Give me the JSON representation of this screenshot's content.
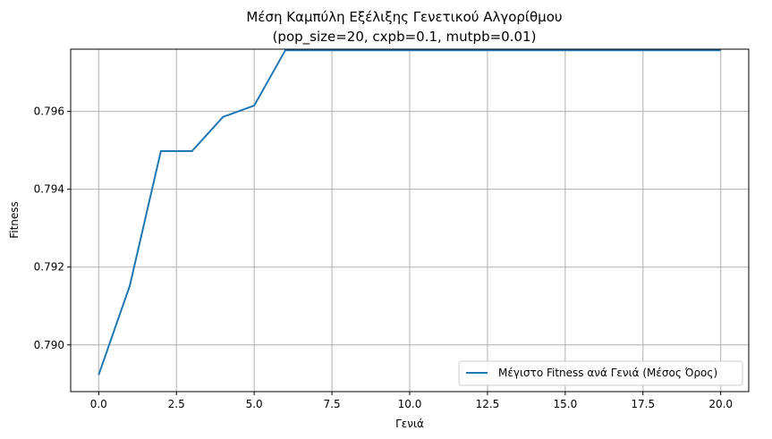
{
  "chart_data": {
    "type": "line",
    "title": "Μέση Καμπύλη Εξέλιξης Γενετικού Αλγορίθμου",
    "subtitle": "(pop_size=20, cxpb=0.1, mutpb=0.01)",
    "xlabel": "Γενιά",
    "ylabel": "Fitness",
    "xlim": [
      -0.9,
      20.9
    ],
    "ylim": [
      0.7888,
      0.7976
    ],
    "xticks": [
      0.0,
      2.5,
      5.0,
      7.5,
      10.0,
      12.5,
      15.0,
      17.5,
      20.0
    ],
    "xtick_labels": [
      "0.0",
      "2.5",
      "5.0",
      "7.5",
      "10.0",
      "12.5",
      "15.0",
      "17.5",
      "20.0"
    ],
    "yticks": [
      0.79,
      0.792,
      0.794,
      0.796
    ],
    "ytick_labels": [
      "0.790",
      "0.792",
      "0.794",
      "0.796"
    ],
    "grid": true,
    "legend_position": "lower-right",
    "series": [
      {
        "name": "Μέγιστο Fitness ανά Γενιά (Μέσος Όρος)",
        "color": "#1f77b4",
        "x": [
          0,
          1,
          2,
          3,
          4,
          5,
          6,
          7,
          8,
          9,
          10,
          11,
          12,
          13,
          14,
          15,
          16,
          17,
          18,
          19,
          20
        ],
        "y": [
          0.78923,
          0.79152,
          0.79498,
          0.79498,
          0.79586,
          0.79615,
          0.79757,
          0.79757,
          0.79757,
          0.79757,
          0.79757,
          0.79757,
          0.79757,
          0.79757,
          0.79757,
          0.79757,
          0.79757,
          0.79757,
          0.79757,
          0.79757,
          0.79757
        ]
      }
    ]
  }
}
